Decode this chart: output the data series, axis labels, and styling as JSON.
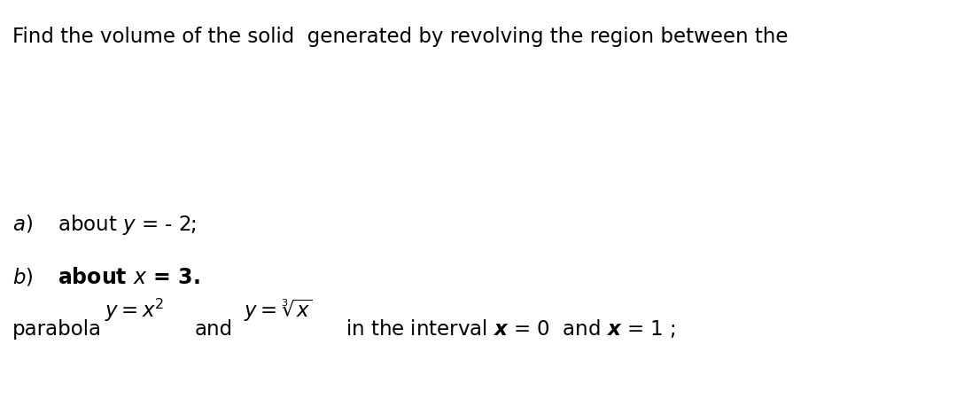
{
  "bg_color": "#ffffff",
  "line1": "Find the volume of the solid  generated by revolving the region between the",
  "font_size": 16.5,
  "fig_width": 10.88,
  "fig_height": 4.6,
  "dpi": 100
}
